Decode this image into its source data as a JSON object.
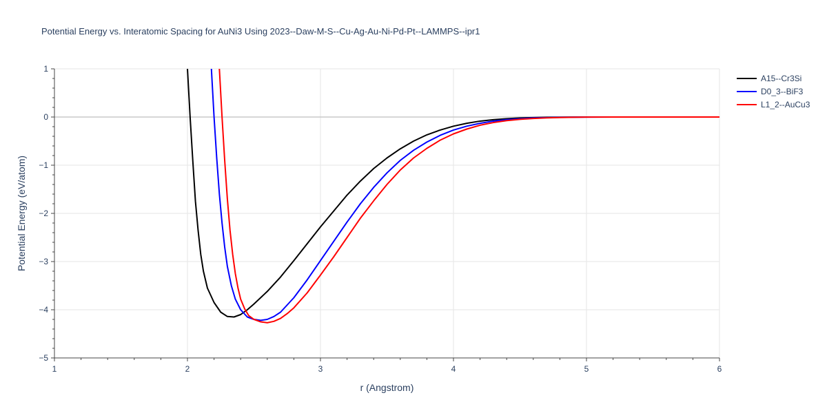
{
  "chart_data": {
    "type": "line",
    "title": "Potential Energy vs. Interatomic Spacing for AuNi3 Using 2023--Daw-M-S--Cu-Ag-Au-Ni-Pd-Pt--LAMMPS--ipr1",
    "xlabel": "r (Angstrom)",
    "ylabel": "Potential Energy (eV/atom)",
    "xlim": [
      1,
      6
    ],
    "ylim": [
      -5,
      1
    ],
    "xticks": [
      1,
      2,
      3,
      4,
      5,
      6
    ],
    "xtick_labels": [
      "1",
      "2",
      "3",
      "4",
      "5",
      "6"
    ],
    "yticks": [
      -5,
      -4,
      -3,
      -2,
      -1,
      0,
      1
    ],
    "ytick_labels": [
      "−5",
      "−4",
      "−3",
      "−2",
      "−1",
      "0",
      "1"
    ],
    "grid": true,
    "legend_position": "top-right",
    "series": [
      {
        "name": "A15--Cr3Si",
        "color": "#000000",
        "x": [
          2.0,
          2.02,
          2.04,
          2.06,
          2.08,
          2.1,
          2.12,
          2.15,
          2.2,
          2.25,
          2.3,
          2.35,
          2.4,
          2.45,
          2.5,
          2.6,
          2.7,
          2.8,
          2.9,
          3.0,
          3.1,
          3.2,
          3.3,
          3.4,
          3.5,
          3.6,
          3.7,
          3.8,
          3.9,
          4.0,
          4.1,
          4.2,
          4.3,
          4.4,
          4.5,
          4.6,
          4.7,
          4.8,
          4.9,
          5.0,
          5.2,
          5.4,
          5.6,
          5.8,
          6.0
        ],
        "y": [
          1.0,
          0.0,
          -0.9,
          -1.75,
          -2.35,
          -2.85,
          -3.2,
          -3.55,
          -3.85,
          -4.05,
          -4.14,
          -4.15,
          -4.1,
          -4.0,
          -3.88,
          -3.62,
          -3.32,
          -2.98,
          -2.63,
          -2.28,
          -1.95,
          -1.62,
          -1.33,
          -1.07,
          -0.85,
          -0.66,
          -0.5,
          -0.37,
          -0.27,
          -0.19,
          -0.13,
          -0.085,
          -0.055,
          -0.035,
          -0.02,
          -0.012,
          -0.006,
          -0.003,
          -0.001,
          0.0,
          0.0,
          0.0,
          0.0,
          0.0,
          0.0
        ]
      },
      {
        "name": "D0_3--BiF3",
        "color": "#0000ff",
        "x": [
          2.18,
          2.2,
          2.22,
          2.24,
          2.26,
          2.28,
          2.3,
          2.33,
          2.36,
          2.4,
          2.45,
          2.5,
          2.55,
          2.6,
          2.65,
          2.7,
          2.8,
          2.9,
          3.0,
          3.1,
          3.2,
          3.3,
          3.4,
          3.5,
          3.6,
          3.7,
          3.8,
          3.9,
          4.0,
          4.1,
          4.2,
          4.3,
          4.4,
          4.5,
          4.6,
          4.7,
          4.8,
          4.9,
          5.0,
          5.2,
          5.4,
          5.6,
          5.8,
          6.0
        ],
        "y": [
          1.0,
          0.0,
          -0.85,
          -1.6,
          -2.2,
          -2.7,
          -3.1,
          -3.5,
          -3.78,
          -4.0,
          -4.15,
          -4.2,
          -4.22,
          -4.2,
          -4.14,
          -4.05,
          -3.75,
          -3.38,
          -2.98,
          -2.58,
          -2.18,
          -1.8,
          -1.46,
          -1.16,
          -0.9,
          -0.69,
          -0.52,
          -0.38,
          -0.27,
          -0.19,
          -0.13,
          -0.085,
          -0.055,
          -0.035,
          -0.02,
          -0.012,
          -0.007,
          -0.004,
          -0.002,
          0.0,
          0.0,
          0.0,
          0.0,
          0.0
        ]
      },
      {
        "name": "L1_2--AuCu3",
        "color": "#ff0000",
        "x": [
          2.24,
          2.26,
          2.28,
          2.3,
          2.32,
          2.34,
          2.36,
          2.38,
          2.4,
          2.43,
          2.46,
          2.5,
          2.55,
          2.6,
          2.65,
          2.7,
          2.75,
          2.8,
          2.9,
          3.0,
          3.1,
          3.2,
          3.3,
          3.4,
          3.5,
          3.6,
          3.7,
          3.8,
          3.9,
          4.0,
          4.1,
          4.2,
          4.3,
          4.4,
          4.5,
          4.6,
          4.7,
          4.8,
          4.9,
          5.0,
          5.2,
          5.4,
          5.6,
          5.8,
          6.0
        ],
        "y": [
          1.0,
          0.0,
          -0.9,
          -1.7,
          -2.35,
          -2.85,
          -3.25,
          -3.55,
          -3.78,
          -3.98,
          -4.12,
          -4.2,
          -4.25,
          -4.27,
          -4.24,
          -4.18,
          -4.08,
          -3.96,
          -3.65,
          -3.28,
          -2.9,
          -2.5,
          -2.1,
          -1.74,
          -1.4,
          -1.1,
          -0.85,
          -0.65,
          -0.48,
          -0.35,
          -0.25,
          -0.17,
          -0.115,
          -0.075,
          -0.048,
          -0.03,
          -0.018,
          -0.01,
          -0.005,
          -0.002,
          0.0,
          0.0,
          0.0,
          0.0,
          0.0
        ]
      }
    ]
  }
}
